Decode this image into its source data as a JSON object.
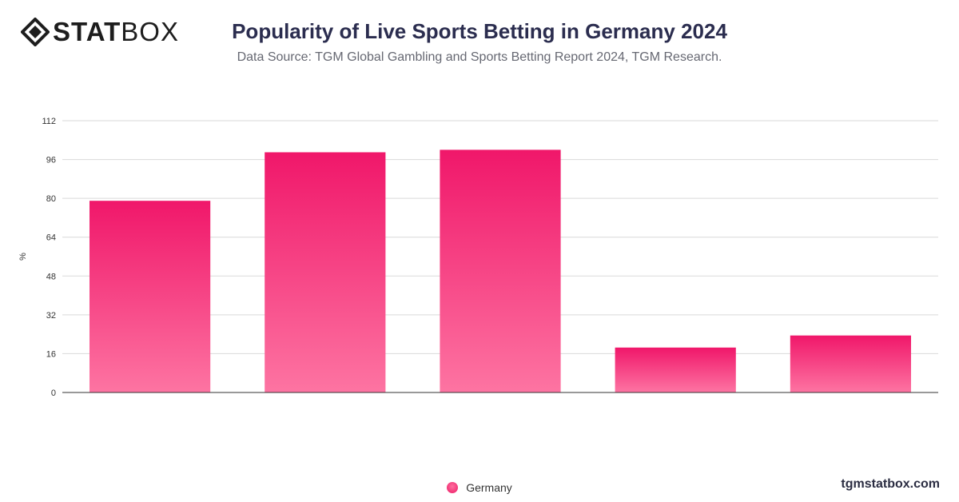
{
  "brand": {
    "logo_bold": "STAT",
    "logo_light": "BOX",
    "footer_url": "tgmstatbox.com"
  },
  "header": {
    "title": "Popularity of Live Sports Betting in Germany 2024",
    "subtitle": "Data Source: TGM Global Gambling and Sports Betting Report 2024, TGM Research."
  },
  "legend": {
    "label": "Germany"
  },
  "colors": {
    "bar_top": "#f0176a",
    "bar_bottom": "#fd74a2",
    "grid": "#d9d9d9",
    "axis": "#333333"
  },
  "chart_data": {
    "type": "bar",
    "title": "Popularity of Live Sports Betting in Germany 2024",
    "xlabel": "",
    "ylabel": "%",
    "categories": [
      "",
      "",
      "",
      "",
      ""
    ],
    "series": [
      {
        "name": "Germany",
        "values": [
          79,
          99,
          100,
          18.5,
          23.5
        ]
      }
    ],
    "ylim": [
      0,
      112
    ],
    "yticks": [
      0,
      16,
      32,
      48,
      64,
      80,
      96,
      112
    ],
    "grid": true,
    "legend_position": "bottom-center"
  }
}
